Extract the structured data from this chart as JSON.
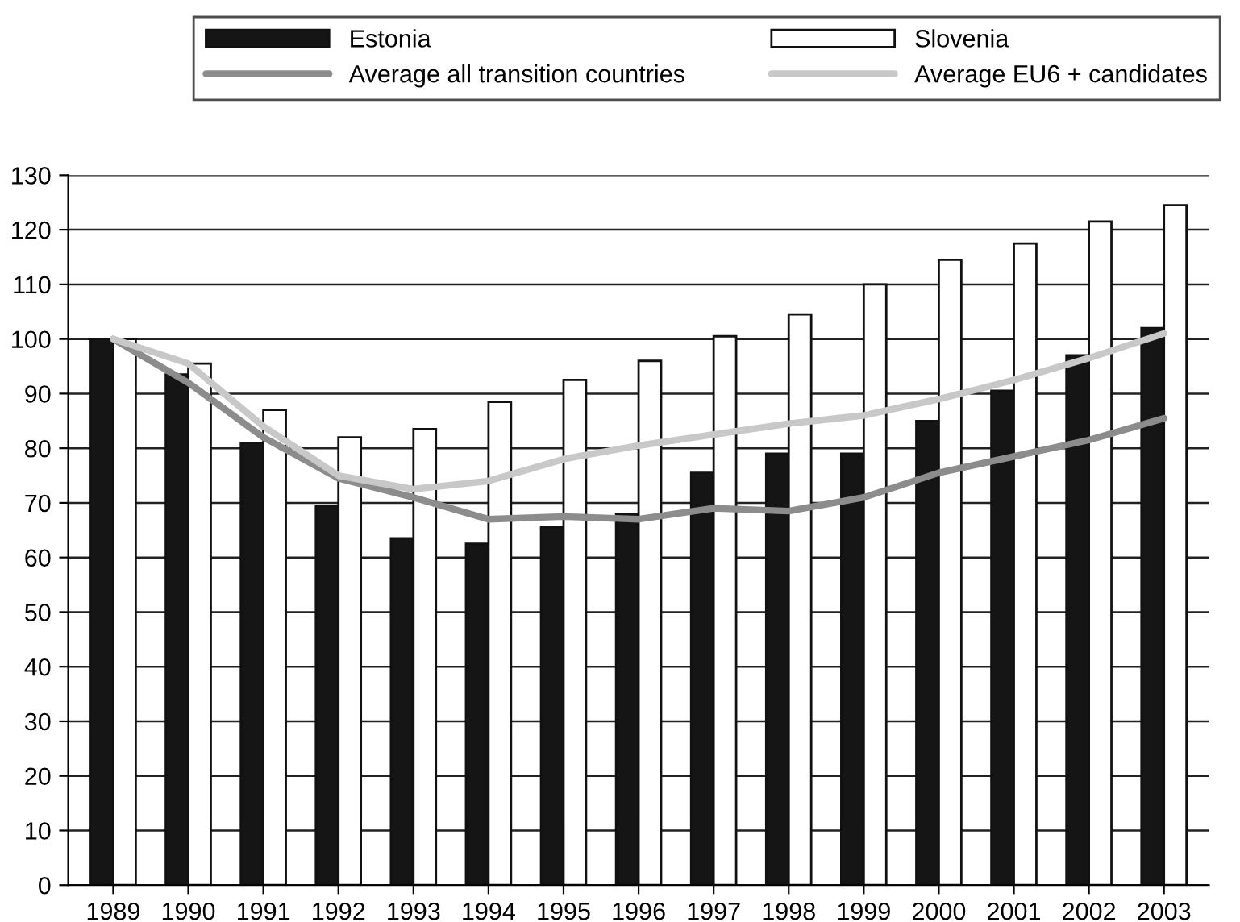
{
  "chart_data": {
    "type": "bar",
    "categories": [
      "1989",
      "1990",
      "1991",
      "1992",
      "1993",
      "1994",
      "1995",
      "1996",
      "1997",
      "1998",
      "1999",
      "2000",
      "2001",
      "2002",
      "2003"
    ],
    "series": [
      {
        "name": "Estonia",
        "color": "#151515",
        "values": [
          100,
          93.5,
          81,
          69.5,
          63.5,
          62.5,
          65.5,
          68,
          75.5,
          79,
          79,
          85,
          90.5,
          97,
          102
        ]
      },
      {
        "name": "Slovenia",
        "color": "#ffffff",
        "values": [
          100,
          95.5,
          87,
          82,
          83.5,
          88.5,
          92.5,
          96,
          100.5,
          104.5,
          110,
          114.5,
          117.5,
          121.5,
          124.5
        ]
      },
      {
        "name": "Average all transition countries",
        "type": "line",
        "color": "#8c8c8c",
        "values": [
          100,
          92,
          82,
          74.5,
          71,
          67,
          67.5,
          67,
          69,
          68.5,
          71,
          75.5,
          78.5,
          81.5,
          85.5
        ]
      },
      {
        "name": "Average EU6 + candidates",
        "type": "line",
        "color": "#c8c8c8",
        "values": [
          100,
          95.5,
          84,
          75,
          72.5,
          74,
          78,
          80.5,
          82.5,
          84.5,
          86,
          89,
          92.5,
          96.5,
          101
        ]
      }
    ],
    "ylim": [
      0,
      130
    ],
    "yticks": [
      0,
      10,
      20,
      30,
      40,
      50,
      60,
      70,
      80,
      90,
      100,
      110,
      120,
      130
    ],
    "grid": "y",
    "legend": "top",
    "marker": "none",
    "line_style": "solid"
  }
}
